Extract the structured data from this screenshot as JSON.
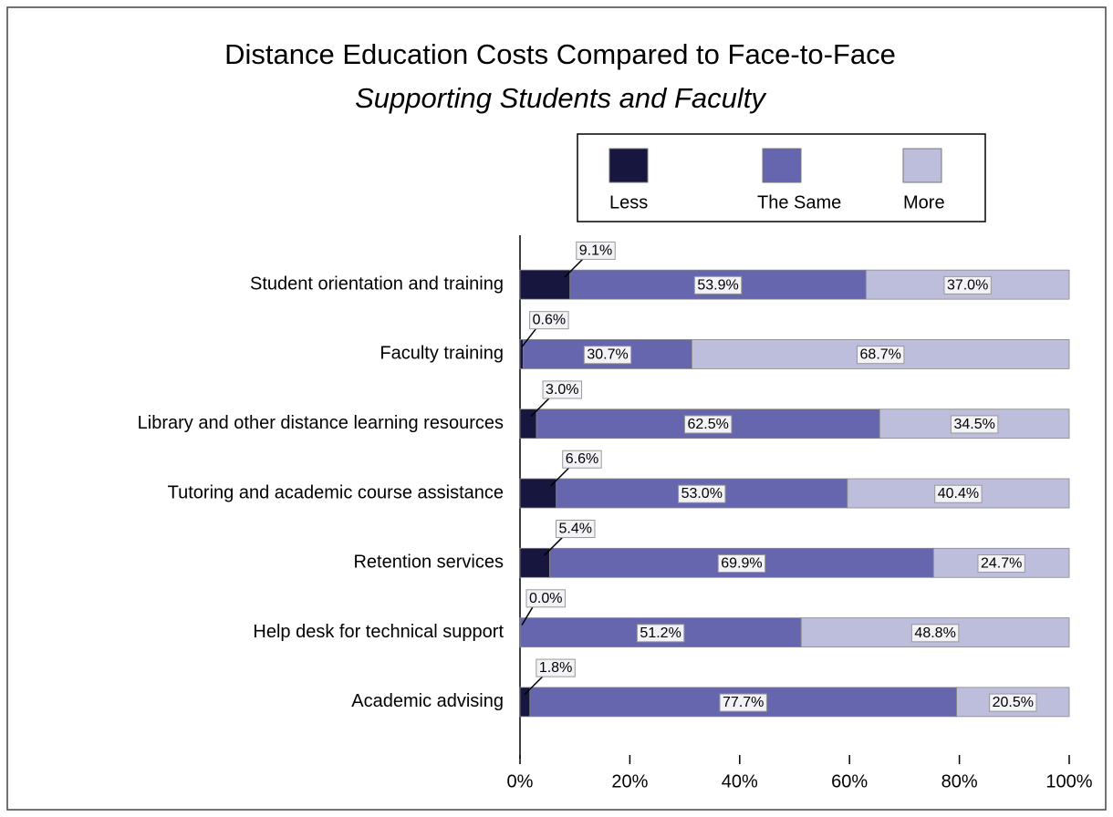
{
  "chart_data": {
    "type": "stacked-bar-horizontal",
    "title": "Distance Education Costs Compared to Face-to-Face",
    "subtitle": "Supporting Students and Faculty",
    "categories": [
      "Student orientation and training",
      "Faculty training",
      "Library and other distance learning resources",
      "Tutoring and academic course assistance",
      "Retention services",
      "Help desk for technical support",
      "Academic advising"
    ],
    "series": [
      {
        "name": "Less",
        "color": "#16163f",
        "values": [
          9.1,
          0.6,
          3.0,
          6.6,
          5.4,
          0.0,
          1.8
        ],
        "value_labels": [
          "9.1%",
          "0.6%",
          "3.0%",
          "6.6%",
          "5.4%",
          "0.0%",
          "1.8%"
        ]
      },
      {
        "name": "The Same",
        "color": "#6666ae",
        "values": [
          53.9,
          30.7,
          62.5,
          53.0,
          69.9,
          51.2,
          77.7
        ],
        "value_labels": [
          "53.9%",
          "30.7%",
          "62.5%",
          "53.0%",
          "69.9%",
          "51.2%",
          "77.7%"
        ]
      },
      {
        "name": "More",
        "color": "#bdbddc",
        "values": [
          37.0,
          68.7,
          34.5,
          40.4,
          24.7,
          48.8,
          20.5
        ],
        "value_labels": [
          "37.0%",
          "68.7%",
          "34.5%",
          "40.4%",
          "24.7%",
          "48.8%",
          "20.5%"
        ]
      }
    ],
    "xlim": [
      0,
      100
    ],
    "xticks": [
      {
        "value": 0,
        "label": "0%"
      },
      {
        "value": 20,
        "label": "20%"
      },
      {
        "value": 40,
        "label": "40%"
      },
      {
        "value": 60,
        "label": "60%"
      },
      {
        "value": 80,
        "label": "80%"
      },
      {
        "value": 100,
        "label": "100%"
      }
    ],
    "legend": "top"
  }
}
